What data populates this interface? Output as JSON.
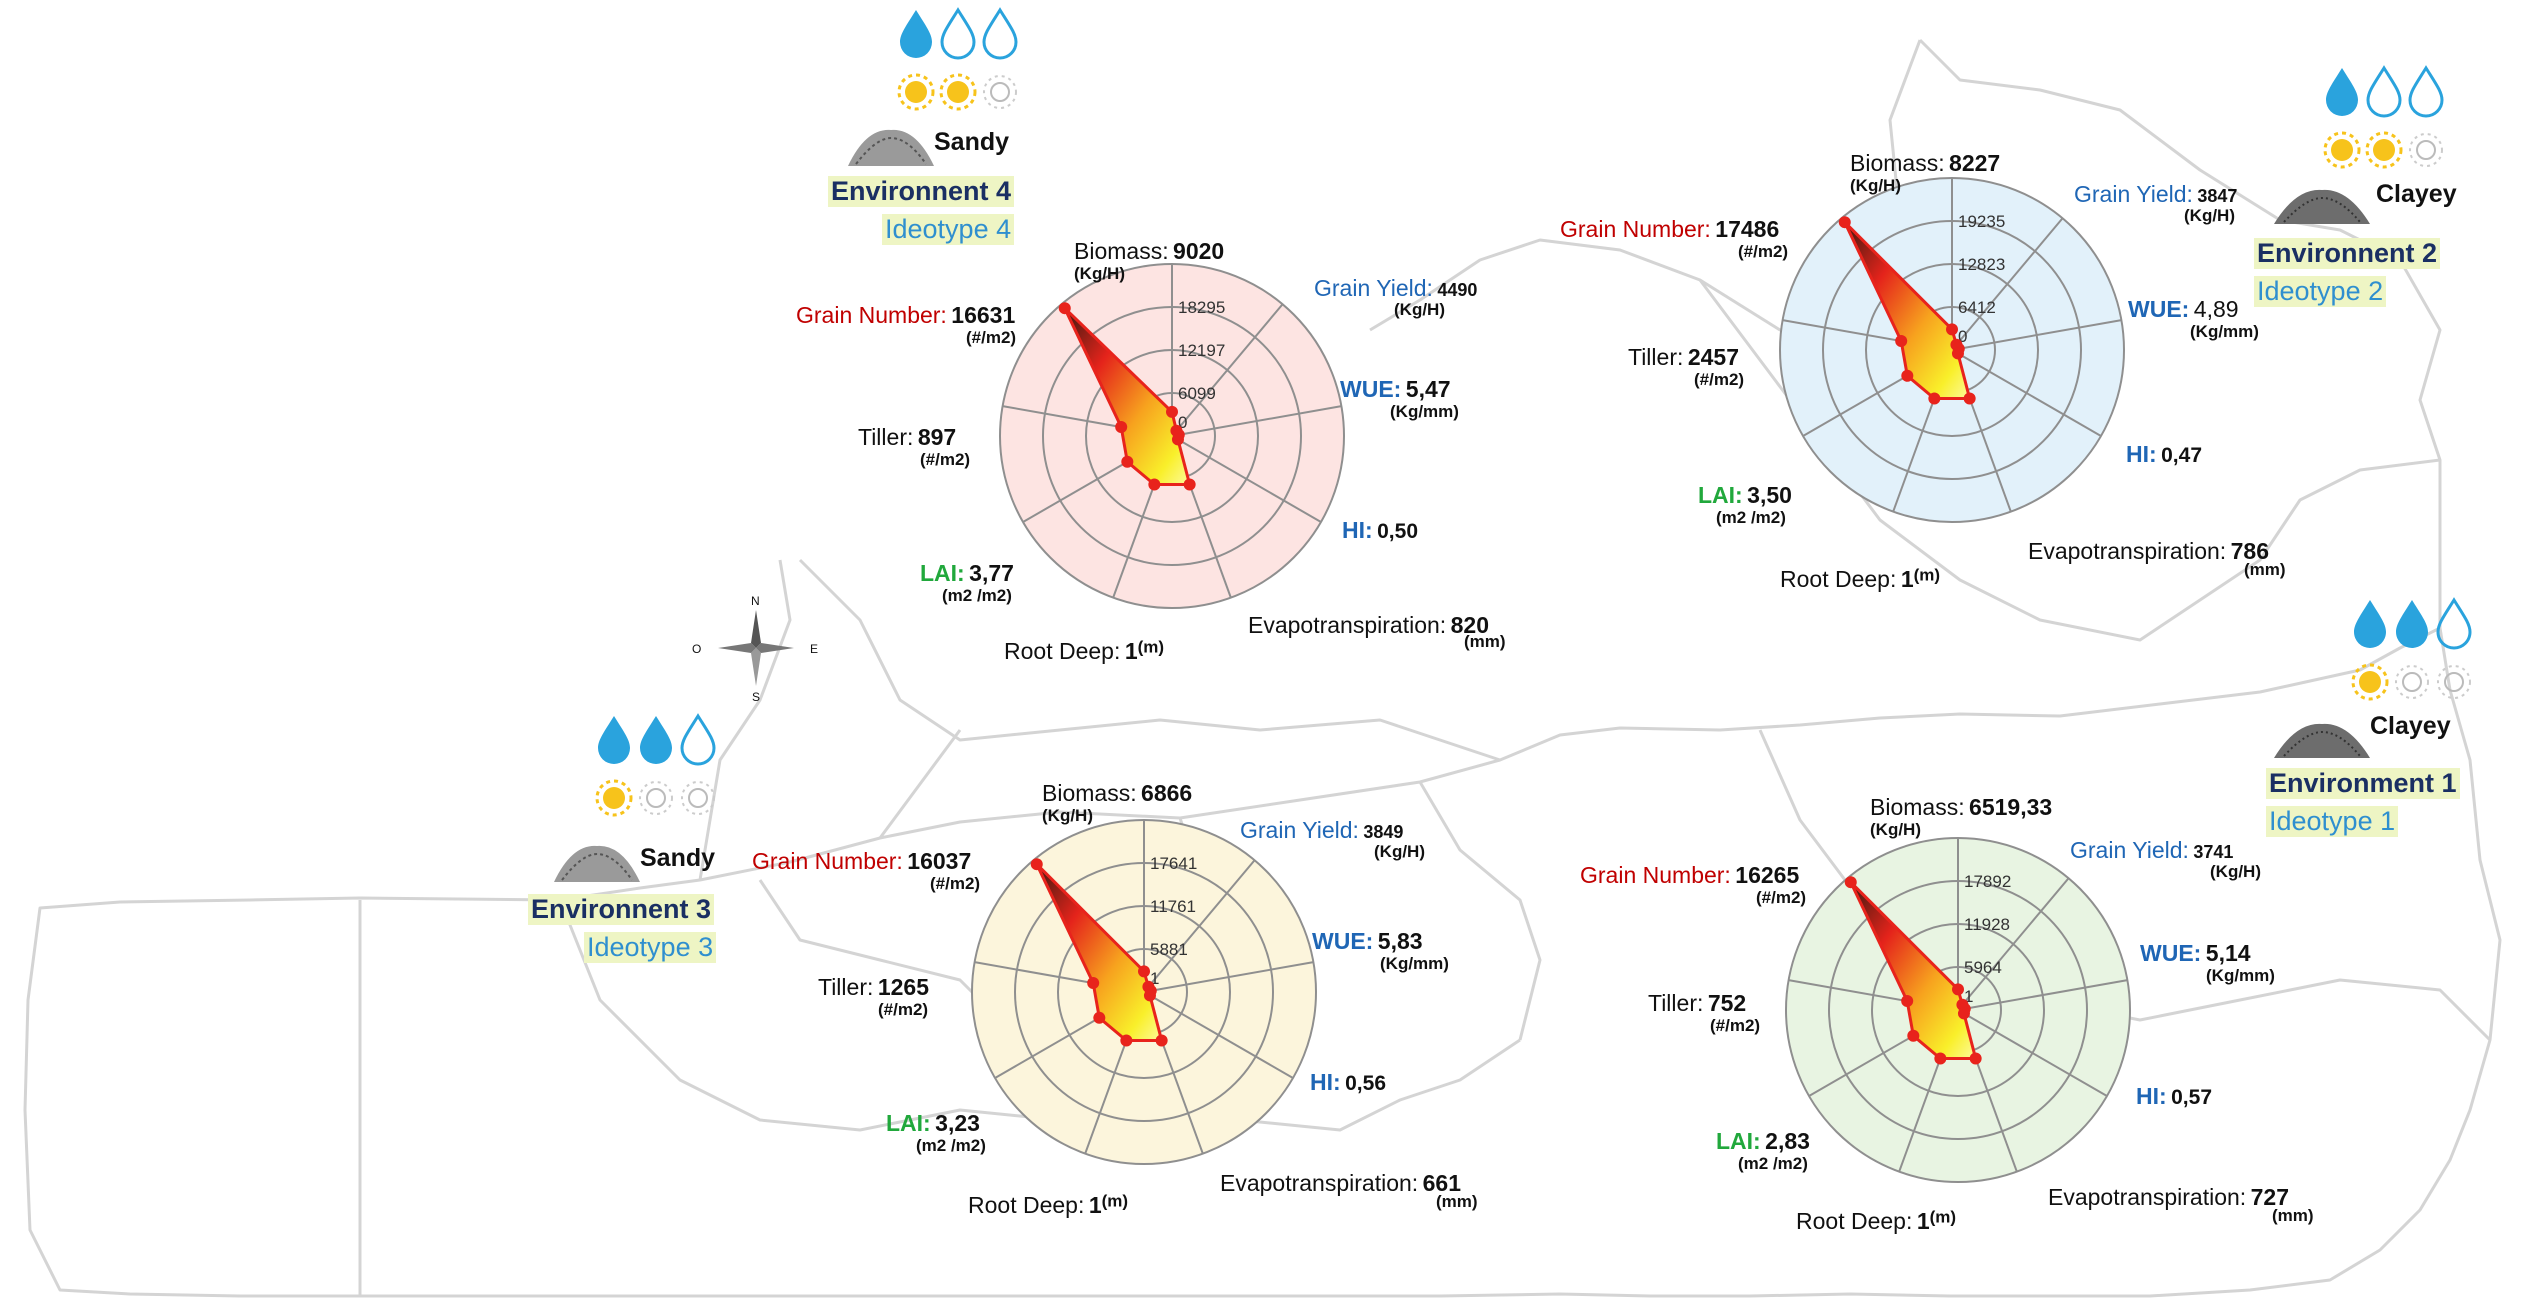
{
  "compass": {
    "n": "N",
    "s": "S",
    "e": "E",
    "w": "O"
  },
  "colors": {
    "polygon_edge": "#e8231c",
    "point": "#e8231c",
    "grid": "#8f8f8f",
    "grain_number_label": "#c00000",
    "blue_label": "#1f66b5",
    "lai_label": "#21a83c",
    "env_name": "#1a2f63",
    "ideotype": "#2f8fcf",
    "highlight": "#eef5c4"
  },
  "chart_data": [
    {
      "type": "radar",
      "id": "env4",
      "background": "#fde4e2",
      "environment": "Environnent 4",
      "ideotype": "Ideotype 4",
      "soil": "Sandy",
      "icons": {
        "water_drops_filled": 1,
        "water_drops_total": 3,
        "suns_filled": 2,
        "suns_total": 3
      },
      "rings": [
        "0",
        "6099",
        "12197",
        "18295"
      ],
      "axes": [
        {
          "key": "biomass",
          "label": "Biomass:",
          "value": "9020",
          "unit": "(Kg/H)",
          "plotted": 0.14
        },
        {
          "key": "grain_yield",
          "label": "Grain Yield:",
          "value": "4490",
          "unit": "(Kg/H)",
          "plotted": 0.04
        },
        {
          "key": "wue",
          "label": "WUE:",
          "value": "5,47",
          "unit": "(Kg/mm)",
          "plotted": 0.04
        },
        {
          "key": "hi",
          "label": "HI:",
          "value": "0,50",
          "unit": "",
          "plotted": 0.04
        },
        {
          "key": "et",
          "label": "Evapotranspiration:",
          "value": "820",
          "unit": "(mm)",
          "plotted": 0.3
        },
        {
          "key": "root",
          "label": "Root Deep:",
          "value": "1",
          "unit": "(m)",
          "plotted": 0.3
        },
        {
          "key": "lai",
          "label": "LAI:",
          "value": "3,77",
          "unit": "(m2 /m2)",
          "plotted": 0.3
        },
        {
          "key": "tiller",
          "label": "Tiller:",
          "value": "897",
          "unit": "(#/m2)",
          "plotted": 0.3
        },
        {
          "key": "grain_number",
          "label": "Grain Number:",
          "value": "16631",
          "unit": "(#/m2)",
          "plotted": 0.97
        }
      ]
    },
    {
      "type": "radar",
      "id": "env2",
      "background": "#e2f1fa",
      "environment": "Environnent 2",
      "ideotype": "Ideotype 2",
      "soil": "Clayey",
      "icons": {
        "water_drops_filled": 1,
        "water_drops_total": 3,
        "suns_filled": 2,
        "suns_total": 3
      },
      "rings": [
        "0",
        "6412",
        "12823",
        "19235"
      ],
      "axes": [
        {
          "key": "biomass",
          "label": "Biomass:",
          "value": "8227",
          "unit": "(Kg/H)",
          "plotted": 0.12
        },
        {
          "key": "grain_yield",
          "label": "Grain Yield:",
          "value": "3847",
          "unit": "(Kg/H)",
          "plotted": 0.04
        },
        {
          "key": "wue",
          "label": "WUE:",
          "value": "4,89",
          "unit": "(Kg/mm)",
          "plotted": 0.04
        },
        {
          "key": "hi",
          "label": "HI:",
          "value": "0,47",
          "unit": "",
          "plotted": 0.04
        },
        {
          "key": "et",
          "label": "Evapotranspiration:",
          "value": "786",
          "unit": "(mm)",
          "plotted": 0.3
        },
        {
          "key": "root",
          "label": "Root Deep:",
          "value": "1",
          "unit": "(m)",
          "plotted": 0.3
        },
        {
          "key": "lai",
          "label": "LAI:",
          "value": "3,50",
          "unit": "(m2 /m2)",
          "plotted": 0.3
        },
        {
          "key": "tiller",
          "label": "Tiller:",
          "value": "2457",
          "unit": "(#/m2)",
          "plotted": 0.3
        },
        {
          "key": "grain_number",
          "label": "Grain Number:",
          "value": "17486",
          "unit": "(#/m2)",
          "plotted": 0.97
        }
      ]
    },
    {
      "type": "radar",
      "id": "env3",
      "background": "#fcf5dc",
      "environment": "Environnent 3",
      "ideotype": "Ideotype 3",
      "soil": "Sandy",
      "icons": {
        "water_drops_filled": 2,
        "water_drops_total": 3,
        "suns_filled": 1,
        "suns_total": 3
      },
      "rings": [
        "1",
        "5881",
        "11761",
        "17641"
      ],
      "axes": [
        {
          "key": "biomass",
          "label": "Biomass:",
          "value": "6866",
          "unit": "(Kg/H)",
          "plotted": 0.12
        },
        {
          "key": "grain_yield",
          "label": "Grain Yield:",
          "value": "3849",
          "unit": "(Kg/H)",
          "plotted": 0.04
        },
        {
          "key": "wue",
          "label": "WUE:",
          "value": "5,83",
          "unit": "(Kg/mm)",
          "plotted": 0.04
        },
        {
          "key": "hi",
          "label": "HI:",
          "value": "0,56",
          "unit": "",
          "plotted": 0.04
        },
        {
          "key": "et",
          "label": "Evapotranspiration:",
          "value": "661",
          "unit": "(mm)",
          "plotted": 0.3
        },
        {
          "key": "root",
          "label": "Root Deep:",
          "value": "1",
          "unit": "(m)",
          "plotted": 0.3
        },
        {
          "key": "lai",
          "label": "LAI:",
          "value": "3,23",
          "unit": "(m2 /m2)",
          "plotted": 0.3
        },
        {
          "key": "tiller",
          "label": "Tiller:",
          "value": "1265",
          "unit": "(#/m2)",
          "plotted": 0.3
        },
        {
          "key": "grain_number",
          "label": "Grain Number:",
          "value": "16037",
          "unit": "(#/m2)",
          "plotted": 0.97
        }
      ]
    },
    {
      "type": "radar",
      "id": "env1",
      "background": "#e8f4e2",
      "environment": "Environment 1",
      "ideotype": "Ideotype 1",
      "soil": "Clayey",
      "icons": {
        "water_drops_filled": 2,
        "water_drops_total": 3,
        "suns_filled": 1,
        "suns_total": 3
      },
      "rings": [
        "1",
        "5964",
        "11928",
        "17892"
      ],
      "axes": [
        {
          "key": "biomass",
          "label": "Biomass:",
          "value": "6519,33",
          "unit": "(Kg/H)",
          "plotted": 0.12
        },
        {
          "key": "grain_yield",
          "label": "Grain Yield:",
          "value": "3741",
          "unit": "(Kg/H)",
          "plotted": 0.04
        },
        {
          "key": "wue",
          "label": "WUE:",
          "value": "5,14",
          "unit": "(Kg/mm)",
          "plotted": 0.04
        },
        {
          "key": "hi",
          "label": "HI:",
          "value": "0,57",
          "unit": "",
          "plotted": 0.04
        },
        {
          "key": "et",
          "label": "Evapotranspiration:",
          "value": "727",
          "unit": "(mm)",
          "plotted": 0.3
        },
        {
          "key": "root",
          "label": "Root Deep:",
          "value": "1",
          "unit": "(m)",
          "plotted": 0.3
        },
        {
          "key": "lai",
          "label": "LAI:",
          "value": "2,83",
          "unit": "(m2 /m2)",
          "plotted": 0.3
        },
        {
          "key": "tiller",
          "label": "Tiller:",
          "value": "752",
          "unit": "(#/m2)",
          "plotted": 0.3
        },
        {
          "key": "grain_number",
          "label": "Grain Number:",
          "value": "16265",
          "unit": "(#/m2)",
          "plotted": 0.97
        }
      ]
    }
  ]
}
